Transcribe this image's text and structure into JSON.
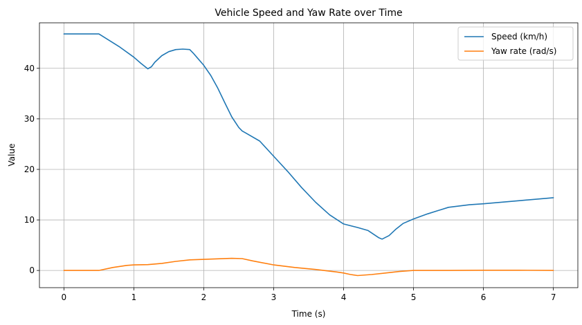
{
  "chart_data": {
    "type": "line",
    "title": "Vehicle Speed and Yaw Rate over Time",
    "xlabel": "Time (s)",
    "ylabel": "Value",
    "xlim": [
      -0.35,
      7.35
    ],
    "ylim": [
      -3.4,
      49.0
    ],
    "xticks": [
      0,
      1,
      2,
      3,
      4,
      5,
      6,
      7
    ],
    "yticks": [
      0,
      10,
      20,
      30,
      40
    ],
    "grid": true,
    "legend_position": "top-right",
    "series": [
      {
        "name": "Speed (km/h)",
        "color": "#1f77b4",
        "x": [
          0,
          0.5,
          0.8,
          1.0,
          1.1,
          1.2,
          1.25,
          1.3,
          1.4,
          1.5,
          1.6,
          1.7,
          1.8,
          1.85,
          1.9,
          2.0,
          2.1,
          2.2,
          2.3,
          2.4,
          2.5,
          2.55,
          2.6,
          2.8,
          3.0,
          3.2,
          3.4,
          3.6,
          3.8,
          4.0,
          4.2,
          4.35,
          4.5,
          4.55,
          4.65,
          4.75,
          4.85,
          5.0,
          5.2,
          5.5,
          5.8,
          6.0,
          6.5,
          7.0
        ],
        "y": [
          46.8,
          46.8,
          44.2,
          42.2,
          41.0,
          39.9,
          40.3,
          41.2,
          42.5,
          43.3,
          43.7,
          43.8,
          43.7,
          43.0,
          42.2,
          40.6,
          38.6,
          36.1,
          33.2,
          30.4,
          28.3,
          27.6,
          27.2,
          25.6,
          22.6,
          19.6,
          16.4,
          13.5,
          11.0,
          9.2,
          8.5,
          7.9,
          6.5,
          6.2,
          6.9,
          8.2,
          9.3,
          10.2,
          11.2,
          12.5,
          13.0,
          13.2,
          13.8,
          14.4
        ]
      },
      {
        "name": "Yaw rate (rad/s)",
        "color": "#ff7f0e",
        "x": [
          0,
          0.5,
          0.7,
          0.9,
          1.0,
          1.2,
          1.4,
          1.6,
          1.8,
          2.0,
          2.2,
          2.4,
          2.55,
          2.7,
          3.0,
          3.3,
          3.6,
          3.9,
          4.0,
          4.1,
          4.2,
          4.4,
          4.6,
          4.8,
          5.0,
          5.5,
          6.0,
          6.5,
          7.0
        ],
        "y": [
          0,
          0,
          0.6,
          1.0,
          1.1,
          1.15,
          1.4,
          1.8,
          2.1,
          2.2,
          2.3,
          2.4,
          2.35,
          1.9,
          1.1,
          0.6,
          0.2,
          -0.3,
          -0.5,
          -0.8,
          -1.0,
          -0.8,
          -0.5,
          -0.2,
          0,
          0,
          0.05,
          0.05,
          0
        ]
      }
    ]
  }
}
